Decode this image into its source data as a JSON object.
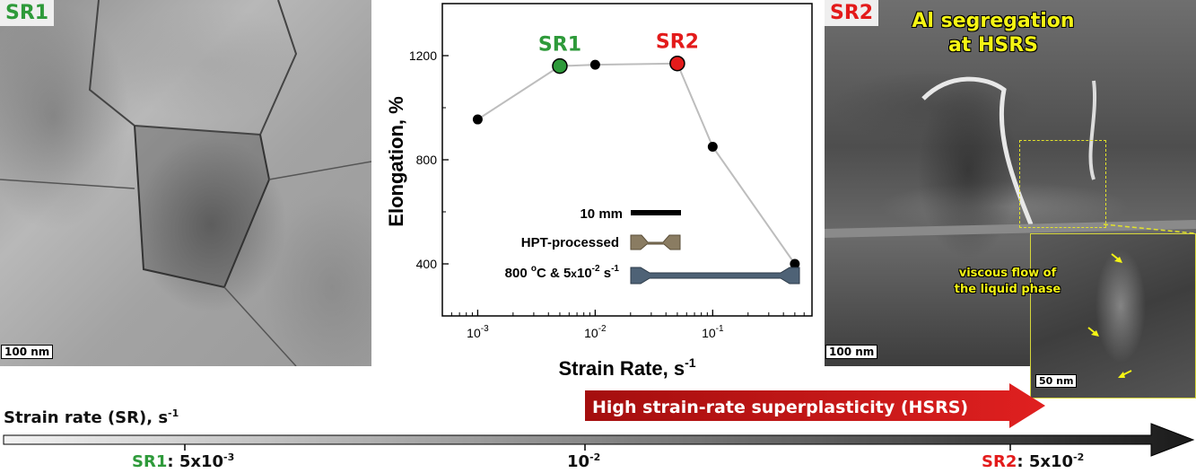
{
  "left_panel": {
    "tag": "SR1",
    "scalebar": "100 nm"
  },
  "right_panel": {
    "tag": "SR2",
    "title_line1": "Al segregation",
    "title_line2": "at HSRS",
    "scalebar": "100 nm",
    "inset_scalebar": "50 nm",
    "inset_text_line1": "viscous flow of",
    "inset_text_line2": "the liquid phase"
  },
  "chart_data": {
    "type": "line",
    "xlabel_main": "Strain Rate, s",
    "xlabel_sup": "-1",
    "ylabel": "Elongation, %",
    "xscale": "log",
    "xlim": [
      0.0005,
      0.7
    ],
    "ylim": [
      200,
      1400
    ],
    "yticks": [
      400,
      800,
      1200
    ],
    "xticks": [
      {
        "value": 0.001,
        "base": "10",
        "exp": "-3"
      },
      {
        "value": 0.01,
        "base": "10",
        "exp": "-2"
      },
      {
        "value": 0.1,
        "base": "10",
        "exp": "-1"
      }
    ],
    "series": [
      {
        "x": [
          0.001,
          0.005,
          0.01,
          0.05,
          0.1,
          0.5
        ],
        "y": [
          955,
          1160,
          1165,
          1170,
          850,
          400
        ]
      }
    ],
    "highlight": [
      {
        "x": 0.005,
        "y": 1160,
        "label": "SR1",
        "color": "#2e9a3a"
      },
      {
        "x": 0.05,
        "y": 1170,
        "label": "SR2",
        "color": "#e31b1b"
      }
    ],
    "legend": {
      "scale_label": "10 mm",
      "hpt_label": "HPT-processed",
      "cond_main": "800 ",
      "cond_sup1": "o",
      "cond_mid": "C & 5",
      "cond_x": "x",
      "cond_10": "10",
      "cond_sup2": "-2",
      "cond_s": " s",
      "cond_sup3": "-1"
    },
    "colors": {
      "line": "#bdbdbd",
      "point": "#000000"
    }
  },
  "bottom": {
    "axis_label_main": "Strain rate (SR), s",
    "axis_label_sup": "-1",
    "hsrs_label": "High strain-rate superplasticity (HSRS)",
    "sr1_name": "SR1",
    "sr1_value": ": 5x10",
    "sr1_exp": "-3",
    "mid_base": "10",
    "mid_exp": "-2",
    "sr2_name": "SR2",
    "sr2_value": ": 5x10",
    "sr2_exp": "-2",
    "colors": {
      "sr1": "#2e9a3a",
      "sr2": "#e31b1b",
      "arrow": "#cc1414"
    }
  }
}
